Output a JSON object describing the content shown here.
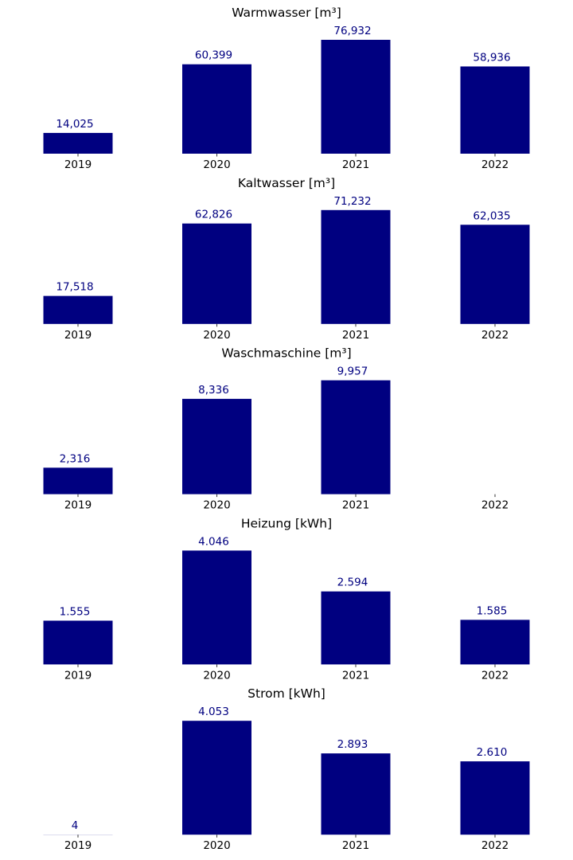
{
  "chart_data": [
    {
      "type": "bar",
      "title": "Warmwasser [m³]",
      "xlabel": "",
      "ylabel": "",
      "categories": [
        "2019",
        "2020",
        "2021",
        "2022"
      ],
      "values": [
        14.025,
        60.399,
        76.932,
        58.936
      ],
      "labels": [
        "14,025",
        "60,399",
        "76,932",
        "58,936"
      ],
      "ylim": [
        0,
        76.932
      ],
      "grid": false,
      "color": "#000080"
    },
    {
      "type": "bar",
      "title": "Kaltwasser [m³]",
      "xlabel": "",
      "ylabel": "",
      "categories": [
        "2019",
        "2020",
        "2021",
        "2022"
      ],
      "values": [
        17.518,
        62.826,
        71.232,
        62.035
      ],
      "labels": [
        "17,518",
        "62,826",
        "71,232",
        "62,035"
      ],
      "ylim": [
        0,
        71.232
      ],
      "grid": false,
      "color": "#000080"
    },
    {
      "type": "bar",
      "title": "Waschmaschine [m³]",
      "xlabel": "",
      "ylabel": "",
      "categories": [
        "2019",
        "2020",
        "2021",
        "2022"
      ],
      "values": [
        2.316,
        8.336,
        9.957,
        null
      ],
      "labels": [
        "2,316",
        "8,336",
        "9,957",
        ""
      ],
      "ylim": [
        0,
        9.957
      ],
      "grid": false,
      "color": "#000080"
    },
    {
      "type": "bar",
      "title": "Heizung [kWh]",
      "xlabel": "",
      "ylabel": "",
      "categories": [
        "2019",
        "2020",
        "2021",
        "2022"
      ],
      "values": [
        1555,
        4046,
        2594,
        1585
      ],
      "labels": [
        "1.555",
        "4.046",
        "2.594",
        "1.585"
      ],
      "ylim": [
        0,
        4046
      ],
      "grid": false,
      "color": "#000080"
    },
    {
      "type": "bar",
      "title": "Strom [kWh]",
      "xlabel": "",
      "ylabel": "",
      "categories": [
        "2019",
        "2020",
        "2021",
        "2022"
      ],
      "values": [
        4,
        4053,
        2893,
        2610
      ],
      "labels": [
        "4",
        "4.053",
        "2.893",
        "2.610"
      ],
      "ylim": [
        0,
        4053
      ],
      "grid": false,
      "color": "#000080"
    }
  ]
}
